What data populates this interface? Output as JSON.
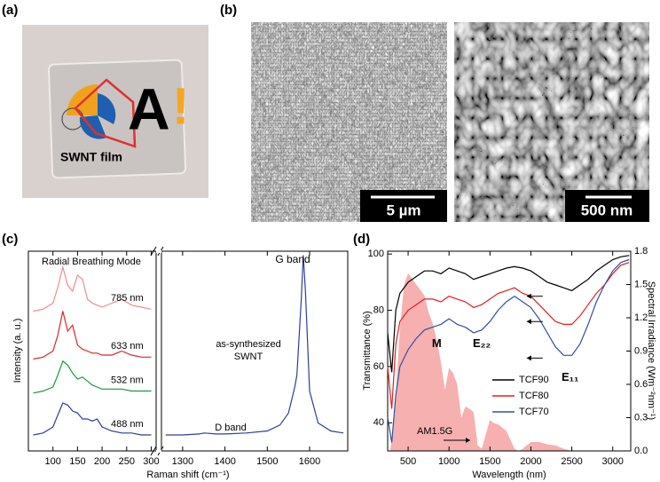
{
  "panels": {
    "a": {
      "label": "(a)",
      "film_label": "SWNT film",
      "logo": [
        "A",
        "!"
      ]
    },
    "b": {
      "label": "(b)",
      "scale_bars": [
        "5 µm",
        "500 nm"
      ]
    }
  },
  "chart_data": [
    {
      "type": "line",
      "panel_label": "(c)",
      "ylabel": "Intensity (a. u.)",
      "xlabel": "Raman shift (cm⁻¹)",
      "annotation": "Radial Breathing Mode",
      "x": [
        60,
        80,
        100,
        110,
        120,
        130,
        140,
        150,
        160,
        170,
        180,
        190,
        200,
        220,
        240,
        260,
        280,
        300
      ],
      "xlim": [
        50,
        310
      ],
      "xticks": [
        100,
        150,
        200,
        250,
        300
      ],
      "ylim": [
        0,
        10
      ],
      "series": [
        {
          "name": "785 nm",
          "color": "#f08c8c",
          "values": [
            7.0,
            7.1,
            7.4,
            8.2,
            9.2,
            8.3,
            8.0,
            8.8,
            8.6,
            7.6,
            7.4,
            7.3,
            7.2,
            7.4,
            7.6,
            7.3,
            7.2,
            7.1
          ]
        },
        {
          "name": "633 nm",
          "color": "#e02424",
          "values": [
            4.6,
            4.7,
            5.0,
            5.8,
            7.0,
            6.0,
            6.3,
            5.3,
            5.1,
            5.0,
            4.9,
            4.9,
            4.8,
            4.8,
            5.0,
            4.8,
            4.7,
            4.7
          ]
        },
        {
          "name": "532 nm",
          "color": "#1a9a3a",
          "values": [
            2.9,
            3.0,
            3.2,
            3.8,
            4.5,
            4.3,
            3.9,
            3.6,
            3.7,
            3.5,
            3.3,
            3.2,
            3.1,
            3.1,
            3.1,
            3.0,
            3.0,
            3.0
          ]
        },
        {
          "name": "488 nm",
          "color": "#2a3f9a",
          "values": [
            0.8,
            0.9,
            1.2,
            1.8,
            2.4,
            2.3,
            2.0,
            1.9,
            1.6,
            1.6,
            1.5,
            1.6,
            1.2,
            1.0,
            0.9,
            0.9,
            0.8,
            0.8
          ]
        }
      ]
    },
    {
      "type": "line",
      "annotations": {
        "sample": [
          "as-synthesized",
          "SWNT"
        ],
        "g_band": "G band",
        "d_band": "D band"
      },
      "x": [
        1260,
        1300,
        1340,
        1350,
        1380,
        1400,
        1450,
        1500,
        1530,
        1550,
        1565,
        1570,
        1580,
        1585,
        1590,
        1600,
        1620,
        1650,
        1680
      ],
      "xlim": [
        1250,
        1690
      ],
      "xticks": [
        1300,
        1400,
        1500,
        1600
      ],
      "ylim": [
        0,
        10
      ],
      "series": [
        {
          "color": "#2a3f9a",
          "values": [
            0.8,
            0.8,
            0.85,
            0.9,
            0.85,
            0.85,
            0.9,
            1.0,
            1.3,
            1.9,
            3.2,
            3.8,
            7.5,
            9.8,
            8.0,
            3.0,
            1.4,
            1.0,
            0.9
          ]
        }
      ]
    },
    {
      "type": "line",
      "panel_label": "(d)",
      "ylabel": "Transmittance (%)",
      "xlabel": "Wavelength (nm)",
      "y2label": "Spectral Irradiance (Wm⁻²nm⁻¹)",
      "annotations": {
        "m": "M",
        "e22": "E₂₂",
        "e11": "E₁₁"
      },
      "x": [
        250,
        300,
        350,
        400,
        500,
        600,
        700,
        800,
        900,
        1000,
        1100,
        1200,
        1300,
        1400,
        1500,
        1600,
        1700,
        1800,
        1900,
        2000,
        2100,
        2200,
        2300,
        2400,
        2500,
        2600,
        2700,
        2800,
        2900,
        3000,
        3100,
        3200
      ],
      "xlim": [
        250,
        3220
      ],
      "xticks": [
        500,
        1000,
        1500,
        2000,
        2500,
        3000
      ],
      "ylim": [
        30,
        101
      ],
      "yticks": [
        40,
        60,
        80,
        100
      ],
      "y2lim": [
        0,
        1.8
      ],
      "y2ticks": [
        {
          "value": 0,
          "label": "0.0"
        },
        0.3,
        0.6,
        0.9,
        1.2,
        1.5,
        1.8
      ],
      "series": [
        {
          "name": "TCF90",
          "color": "#000000",
          "values": [
            72,
            58,
            80,
            86,
            90,
            92,
            94,
            94,
            93,
            95,
            94,
            93,
            91,
            92,
            93,
            94,
            95,
            95.5,
            95,
            94,
            92,
            90,
            89,
            88,
            87,
            89,
            91,
            94,
            96,
            98,
            99,
            99.5
          ]
        },
        {
          "name": "TCF80",
          "color": "#e02020",
          "values": [
            60,
            45,
            68,
            76,
            80,
            82,
            84,
            84,
            83,
            85,
            84,
            83,
            81,
            82,
            84,
            86,
            87,
            88,
            86,
            85,
            82,
            79,
            76,
            75,
            75,
            78,
            82,
            86,
            89,
            93,
            96,
            97
          ]
        },
        {
          "name": "TCF70",
          "color": "#3050a0",
          "values": [
            42,
            33,
            50,
            60,
            66,
            70,
            73,
            74,
            75,
            77,
            75,
            74,
            72,
            73,
            76,
            80,
            83,
            85,
            83,
            81,
            77,
            72,
            67,
            64,
            64,
            68,
            75,
            83,
            89,
            94,
            97,
            98
          ]
        }
      ],
      "spectrum": {
        "name": "AM1.5G",
        "color": "#f6b0b0",
        "axis": "y2",
        "x": [
          280,
          300,
          350,
          400,
          450,
          500,
          550,
          600,
          650,
          700,
          750,
          800,
          850,
          900,
          950,
          1000,
          1050,
          1100,
          1150,
          1200,
          1250,
          1300,
          1350,
          1400,
          1450,
          1500,
          1550,
          1600,
          1700,
          1800,
          1850,
          1900,
          1950,
          2000,
          2100,
          2200,
          2300,
          2400,
          2500,
          3000
        ],
        "values": [
          0,
          0.1,
          0.5,
          1.1,
          1.5,
          1.6,
          1.55,
          1.5,
          1.45,
          1.4,
          1.25,
          1.15,
          1.0,
          0.8,
          0.55,
          0.75,
          0.7,
          0.6,
          0.3,
          0.4,
          0.38,
          0.35,
          0.05,
          0.02,
          0.15,
          0.28,
          0.25,
          0.24,
          0.18,
          0.02,
          0,
          0.02,
          0.05,
          0.08,
          0.08,
          0.06,
          0.05,
          0.02,
          0,
          0
        ]
      }
    }
  ]
}
